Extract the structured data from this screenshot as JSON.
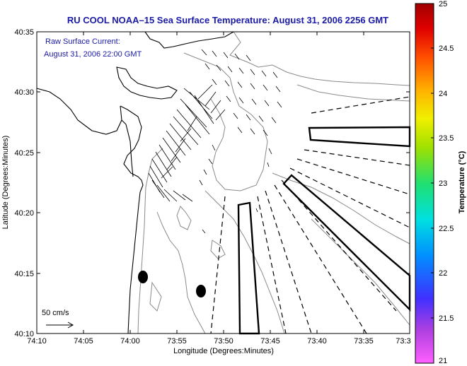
{
  "title": "RU COOL  NOAA–15  Sea Surface Temperature:  August 31, 2006 2256 GMT",
  "annotation": {
    "line1": "Raw Surface Current:",
    "line2": "August 31, 2006 22:00 GMT"
  },
  "scale_label": "50 cm/s",
  "axes": {
    "xlabel": "Longitude (Degrees:Minutes)",
    "ylabel": "Latitude (Degrees:Minutes)",
    "xticks": [
      "74:10",
      "74:05",
      "74:00",
      "73:55",
      "73:50",
      "73:45",
      "73:40",
      "73:35",
      "73:3"
    ],
    "yticks": [
      "40:35",
      "40:30",
      "40:25",
      "40:20",
      "40:15",
      "40:10"
    ]
  },
  "colorbar": {
    "label": "Temperature (°C)",
    "ticks": [
      "25",
      "24.5",
      "24",
      "23.5",
      "23",
      "22.5",
      "22",
      "21.5",
      "21"
    ],
    "colors": [
      "#ff60ff",
      "#b040e0",
      "#4030ff",
      "#0090ff",
      "#00e0e0",
      "#20e070",
      "#a0e000",
      "#f0f000",
      "#ffb000",
      "#ff5000",
      "#e00000",
      "#a00000"
    ]
  }
}
